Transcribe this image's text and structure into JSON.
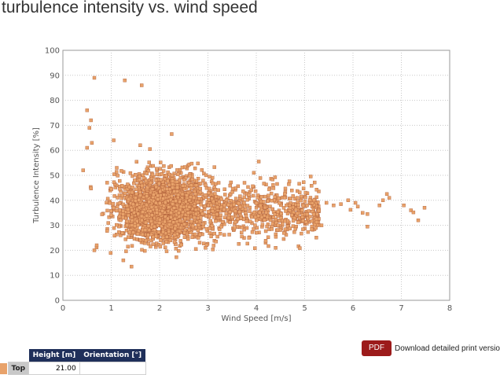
{
  "page": {
    "title": "turbulence intensity vs. wind speed"
  },
  "chart_data": {
    "type": "scatter",
    "title": "",
    "xlabel": "Wind Speed [m/s]",
    "ylabel": "Turbulence Intensity [%]",
    "xlim": [
      0,
      8
    ],
    "ylim": [
      0,
      100
    ],
    "xticks": [
      0,
      1,
      2,
      3,
      4,
      5,
      6,
      7,
      8
    ],
    "yticks": [
      0,
      10,
      20,
      30,
      40,
      50,
      60,
      70,
      80,
      90,
      100
    ],
    "grid": true,
    "legend": "none",
    "marker_color": "#e8a26a",
    "marker_edge_color": "#b0603a",
    "series": [
      {
        "points": [
          [
            0.65,
            89
          ],
          [
            1.28,
            88
          ],
          [
            1.63,
            86
          ],
          [
            0.5,
            76
          ],
          [
            0.58,
            72
          ],
          [
            0.55,
            69
          ],
          [
            2.25,
            66.5
          ],
          [
            1.05,
            64
          ],
          [
            0.6,
            63
          ],
          [
            0.5,
            61
          ],
          [
            1.6,
            62
          ],
          [
            1.8,
            60.5
          ],
          [
            4.05,
            55.5
          ],
          [
            0.42,
            52
          ],
          [
            3.95,
            51
          ],
          [
            4.85,
            41
          ],
          [
            5.45,
            39
          ],
          [
            5.6,
            38
          ],
          [
            5.9,
            40
          ],
          [
            6.1,
            37.5
          ],
          [
            6.2,
            35
          ],
          [
            6.3,
            34.5
          ],
          [
            6.55,
            38
          ],
          [
            6.62,
            40
          ],
          [
            6.7,
            42.5
          ],
          [
            6.75,
            41
          ],
          [
            7.05,
            38
          ],
          [
            7.2,
            36
          ],
          [
            7.25,
            35.2
          ],
          [
            7.48,
            37
          ],
          [
            7.35,
            32
          ],
          [
            6.3,
            29.5
          ],
          [
            5.35,
            30
          ],
          [
            4.45,
            30
          ],
          [
            3.85,
            25
          ],
          [
            3.7,
            25.5
          ],
          [
            4.4,
            21
          ],
          [
            2.75,
            20.5
          ],
          [
            2.95,
            21
          ],
          [
            1.42,
            13.5
          ],
          [
            1.25,
            16
          ],
          [
            0.65,
            20
          ],
          [
            0.7,
            22
          ],
          [
            5.75,
            38.5
          ],
          [
            5.95,
            36.2
          ],
          [
            6.05,
            39
          ],
          [
            5.2,
            40
          ],
          [
            5.05,
            38
          ],
          [
            4.95,
            36
          ],
          [
            4.7,
            37
          ]
        ],
        "cloud": {
          "count": 2600,
          "x_center": 2.05,
          "x_spread": 0.85,
          "y_center": 37,
          "y_spread": 6.5
        }
      }
    ]
  },
  "table": {
    "headers": [
      "Height [m]",
      "Orientation [°]"
    ],
    "rows": [
      {
        "label": "Top",
        "height": "21.00",
        "orientation": ""
      }
    ]
  },
  "pdf": {
    "button_label": "PDF",
    "link_text": "Download detailed print version"
  }
}
